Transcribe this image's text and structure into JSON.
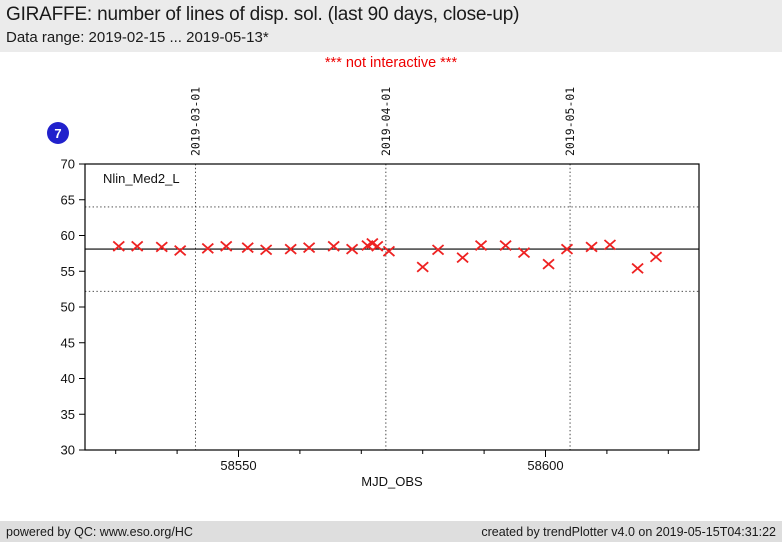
{
  "header": {
    "title": "GIRAFFE: number of lines of disp. sol. (last 90 days, close-up)",
    "subtitle": "Data range: 2019-02-15 ... 2019-05-13*"
  },
  "notice": {
    "text": "*** not interactive ***"
  },
  "badge": {
    "label": "7"
  },
  "footer": {
    "left": "powered by QC: www.eso.org/HC",
    "right": "created by trendPlotter v4.0 on 2019-05-15T04:31:22"
  },
  "colors": {
    "header_bg": "#ebebeb",
    "footer_bg": "#dedede",
    "notice_red": "#ee0000",
    "badge_blue": "#2121cc",
    "text": "#1a1a1a"
  },
  "chart_data": {
    "type": "scatter",
    "title": "GIRAFFE: number of lines of disp. sol. (last 90 days, close-up)",
    "series_label": "Nlin_Med2_L",
    "marker": "x",
    "marker_color": "#ee2222",
    "x_axis": {
      "label": "MJD_OBS",
      "range": [
        58525,
        58625
      ],
      "major_ticks": [
        58550,
        58600
      ],
      "minor_tick_step": 10
    },
    "y_axis": {
      "range": [
        30,
        70
      ],
      "tick_step": 5
    },
    "date_gridlines": [
      {
        "mjd": 58543,
        "label": "2019-03-01"
      },
      {
        "mjd": 58574,
        "label": "2019-04-01"
      },
      {
        "mjd": 58604,
        "label": "2019-05-01"
      }
    ],
    "mean_line": 58.1,
    "threshold_upper": 64.0,
    "threshold_lower": 52.2,
    "points": [
      [
        58530.5,
        58.5
      ],
      [
        58533.5,
        58.5
      ],
      [
        58537.5,
        58.4
      ],
      [
        58540.5,
        57.9
      ],
      [
        58545.0,
        58.2
      ],
      [
        58548.0,
        58.5
      ],
      [
        58551.5,
        58.3
      ],
      [
        58554.5,
        58.0
      ],
      [
        58558.5,
        58.1
      ],
      [
        58561.5,
        58.3
      ],
      [
        58565.5,
        58.5
      ],
      [
        58568.5,
        58.1
      ],
      [
        58571.0,
        58.6
      ],
      [
        58571.8,
        58.9
      ],
      [
        58572.6,
        58.5
      ],
      [
        58574.5,
        57.8
      ],
      [
        58580.0,
        55.6
      ],
      [
        58582.5,
        58.0
      ],
      [
        58586.5,
        56.9
      ],
      [
        58589.5,
        58.6
      ],
      [
        58593.5,
        58.6
      ],
      [
        58596.5,
        57.6
      ],
      [
        58600.5,
        56.0
      ],
      [
        58603.5,
        58.1
      ],
      [
        58607.5,
        58.4
      ],
      [
        58610.5,
        58.7
      ],
      [
        58615.0,
        55.4
      ],
      [
        58618.0,
        57.0
      ]
    ]
  }
}
